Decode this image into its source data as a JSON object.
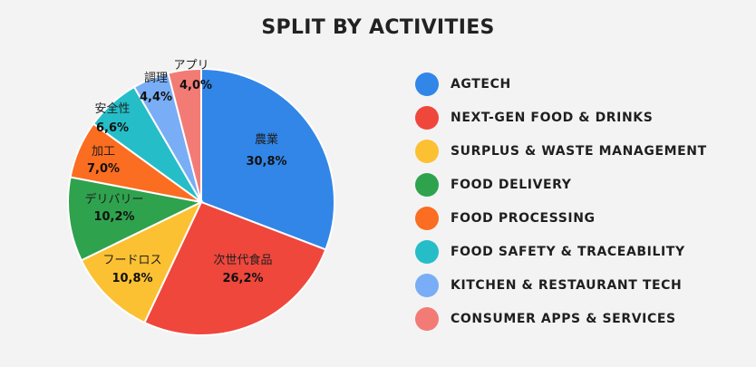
{
  "chart_data": {
    "type": "pie",
    "title": "SPLIT BY ACTIVITIES",
    "slices": [
      {
        "name": "農業",
        "value_label": "30,8%",
        "value": 30.8,
        "color": "#3186e8",
        "legend": "AGTECH"
      },
      {
        "name": "次世代食品",
        "value_label": "26,2%",
        "value": 26.2,
        "color": "#ef473c",
        "legend": "NEXT-GEN FOOD & DRINKS"
      },
      {
        "name": "フードロス",
        "value_label": "10,8%",
        "value": 10.8,
        "color": "#fbc132",
        "legend": "SURPLUS & WASTE MANAGEMENT"
      },
      {
        "name": "デリバリー",
        "value_label": "10,2%",
        "value": 10.2,
        "color": "#2fa24e",
        "legend": "FOOD DELIVERY"
      },
      {
        "name": "加工",
        "value_label": "7,0%",
        "value": 7.0,
        "color": "#fb6d20",
        "legend": "FOOD PROCESSING"
      },
      {
        "name": "安全性",
        "value_label": "6,6%",
        "value": 6.6,
        "color": "#25bec8",
        "legend": "FOOD SAFETY & TRACEABILITY"
      },
      {
        "name": "調理",
        "value_label": "4,4%",
        "value": 4.4,
        "color": "#79adf5",
        "legend": "KITCHEN & RESTAURANT TECH"
      },
      {
        "name": "アプリ",
        "value_label": "4,0%",
        "value": 4.0,
        "color": "#f37b76",
        "legend": "CONSUMER APPS & SERVICES"
      }
    ]
  }
}
